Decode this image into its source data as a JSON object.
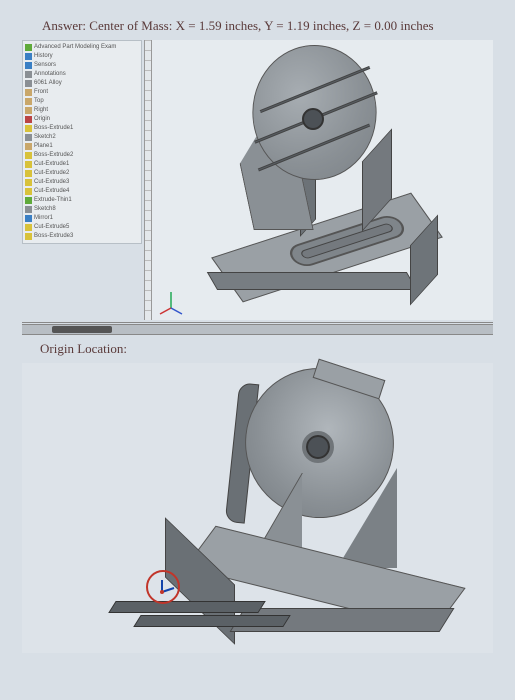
{
  "answer": {
    "label": "Answer: Center of Mass:",
    "x_label": "X =",
    "x_value": "1.59 inches,",
    "y_label": "Y =",
    "y_value": "1.19 inches,",
    "z_label": "Z =",
    "z_value": "0.00 inches"
  },
  "caption_origin": "Origin Location:",
  "tree": {
    "items": [
      {
        "icon": "green",
        "label": "Advanced Part Modeling Exam"
      },
      {
        "icon": "blue",
        "label": "History"
      },
      {
        "icon": "blue",
        "label": "Sensors"
      },
      {
        "icon": "gray",
        "label": "Annotations"
      },
      {
        "icon": "gray",
        "label": "6061 Alloy"
      },
      {
        "icon": "tan",
        "label": "Front"
      },
      {
        "icon": "tan",
        "label": "Top"
      },
      {
        "icon": "tan",
        "label": "Right"
      },
      {
        "icon": "red",
        "label": "Origin"
      },
      {
        "icon": "yellow",
        "label": "Boss-Extrude1"
      },
      {
        "icon": "gray",
        "label": "Sketch2"
      },
      {
        "icon": "tan",
        "label": "Plane1"
      },
      {
        "icon": "yellow",
        "label": "Boss-Extrude2"
      },
      {
        "icon": "yellow",
        "label": "Cut-Extrude1"
      },
      {
        "icon": "yellow",
        "label": "Cut-Extrude2"
      },
      {
        "icon": "yellow",
        "label": "Cut-Extrude3"
      },
      {
        "icon": "yellow",
        "label": "Cut-Extrude4"
      },
      {
        "icon": "green",
        "label": "Extrude-Thin1"
      },
      {
        "icon": "gray",
        "label": "Sketch8"
      },
      {
        "icon": "blue",
        "label": "Mirror1"
      },
      {
        "icon": "yellow",
        "label": "Cut-Extrude5"
      },
      {
        "icon": "yellow",
        "label": "Boss-Extrude3"
      }
    ]
  },
  "colors": {
    "background": "#d8dfe6",
    "panel": "#e8ecef",
    "metal_light": "#9aa0a5",
    "metal_mid": "#8a9095",
    "metal_dark": "#74797e",
    "edge": "#555555",
    "origin_ring": "#c1352a",
    "text": "#5a3a3a"
  },
  "part": {
    "type": "3d-cad-model",
    "description": "Angled bracket with circular grooved face plate on a slotted base",
    "views": [
      "isometric-front-right",
      "isometric-back-left"
    ],
    "features": {
      "disc_grooves": 3,
      "disc_center_hole": true,
      "base_slot": true,
      "ribs": 2
    }
  }
}
